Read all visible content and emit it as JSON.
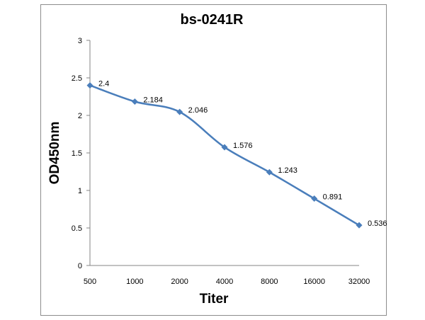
{
  "chart_data": {
    "type": "line",
    "title": "bs-0241R",
    "xlabel": "Titer",
    "ylabel": "OD450nm",
    "categories": [
      "500",
      "1000",
      "2000",
      "4000",
      "8000",
      "16000",
      "32000"
    ],
    "series": [
      {
        "values": [
          2.4,
          2.184,
          2.046,
          1.576,
          1.243,
          0.891,
          0.536
        ],
        "labels": [
          "2.4",
          "2.184",
          "2.046",
          "1.576",
          "1.243",
          "0.891",
          "0.536"
        ]
      }
    ],
    "ylim": [
      0,
      3
    ],
    "yticks": [
      "0",
      "0.5",
      "1",
      "1.5",
      "2",
      "2.5",
      "3"
    ],
    "line_color": "#4a7ebb",
    "smooth": true,
    "grid": false,
    "legend": "none"
  }
}
